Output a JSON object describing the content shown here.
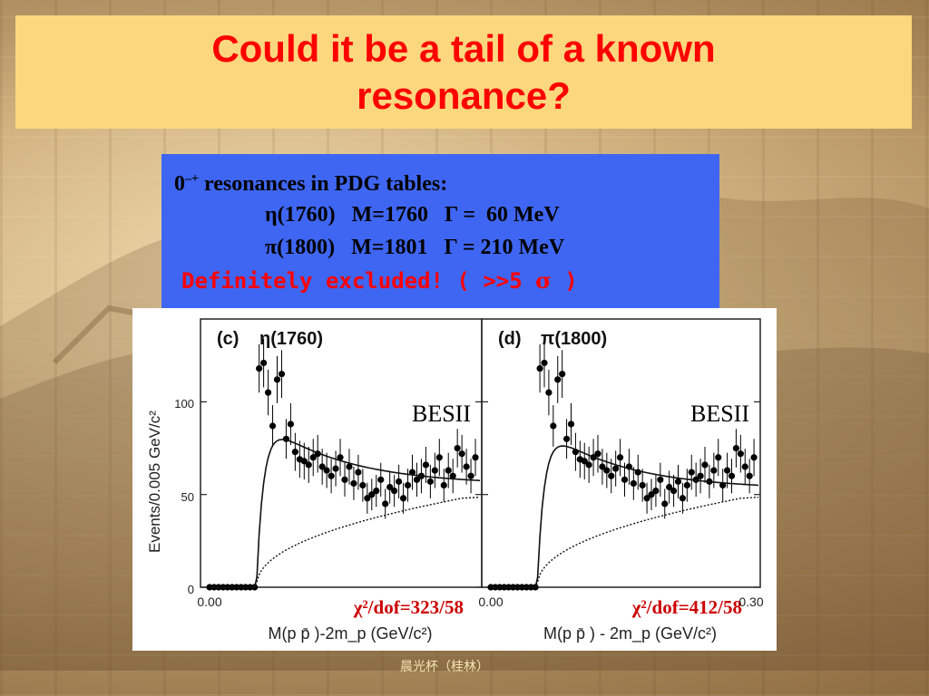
{
  "slide": {
    "title": "Could it be a tail of a known resonance?",
    "footer": "晨光杯（桂林）"
  },
  "info": {
    "heading_prefix": "0",
    "heading_sup": "–+",
    "heading_rest": " resonances in PDG tables:",
    "rows": [
      {
        "symbol": "η",
        "name": "(1760)",
        "mass": "M=1760",
        "gamma": "Γ =  60 MeV"
      },
      {
        "symbol": "π",
        "name": "(1800)",
        "mass": "M=1801",
        "gamma": "Γ = 210 MeV"
      }
    ],
    "excluded_text": "Definitely excluded! ( >>5 ",
    "excluded_sigma": "σ",
    "excluded_close": " )"
  },
  "plots": {
    "y_axis_label": "Events/0.005 GeV/c²",
    "y_ticks": [
      "0",
      "50",
      "100"
    ],
    "panels": [
      {
        "tag": "(c)",
        "label": "η(1760)",
        "experiment": "BESII",
        "chi2": "χ²/dof=323/58",
        "x_ticks": [
          "0.00"
        ],
        "x_label": "M(p p̄ )-2m_p (GeV/c²)"
      },
      {
        "tag": "(d)",
        "label": "π(1800)",
        "experiment": "BESII",
        "chi2": "χ²/dof=412/58",
        "x_ticks": [
          "0.00",
          "0.30"
        ],
        "x_label": "M(p p̄ ) - 2m_p (GeV/c²)"
      }
    ]
  },
  "colors": {
    "title_bg": "#fcd77e",
    "title_text": "#ff0000",
    "info_bg": "#3f66f2",
    "excluded_text": "#ff0000",
    "chi2_text": "#cc0000"
  },
  "chart_data": [
    {
      "type": "scatter",
      "title": "η(1760)",
      "xlabel": "M(p p̄ )-2m_p (GeV/c²)",
      "ylabel": "Events/0.005 GeV/c²",
      "xlim": [
        0,
        0.3
      ],
      "ylim": [
        0,
        130
      ],
      "x": [
        0.0,
        0.005,
        0.01,
        0.015,
        0.02,
        0.025,
        0.03,
        0.035,
        0.04,
        0.045,
        0.05,
        0.055,
        0.06,
        0.065,
        0.07,
        0.075,
        0.08,
        0.085,
        0.09,
        0.095,
        0.1,
        0.105,
        0.11,
        0.115,
        0.12,
        0.125,
        0.13,
        0.135,
        0.14,
        0.145,
        0.15,
        0.155,
        0.16,
        0.165,
        0.17,
        0.175,
        0.18,
        0.185,
        0.19,
        0.195,
        0.2,
        0.205,
        0.21,
        0.215,
        0.22,
        0.225,
        0.23,
        0.235,
        0.24,
        0.245,
        0.25,
        0.255,
        0.26,
        0.265,
        0.27,
        0.275,
        0.28,
        0.285,
        0.29,
        0.295
      ],
      "series": [
        {
          "values": [
            0,
            0,
            0,
            0,
            0,
            0,
            0,
            0,
            0,
            0,
            0,
            118,
            121,
            105,
            87,
            112,
            115,
            80,
            88,
            73,
            69,
            68,
            66,
            70,
            72,
            65,
            63,
            60,
            64,
            70,
            58,
            65,
            56,
            62,
            55,
            48,
            50,
            52,
            58,
            45,
            54,
            52,
            57,
            48,
            55,
            62,
            58,
            60,
            66,
            57,
            63,
            70,
            55,
            63,
            60,
            75,
            72,
            65,
            60,
            70
          ]
        }
      ]
    },
    {
      "type": "scatter",
      "title": "π(1800)",
      "xlabel": "M(p p̄ ) - 2m_p (GeV/c²)",
      "ylabel": "Events/0.005 GeV/c²",
      "xlim": [
        0,
        0.3
      ],
      "ylim": [
        0,
        130
      ],
      "x": [
        0.0,
        0.005,
        0.01,
        0.015,
        0.02,
        0.025,
        0.03,
        0.035,
        0.04,
        0.045,
        0.05,
        0.055,
        0.06,
        0.065,
        0.07,
        0.075,
        0.08,
        0.085,
        0.09,
        0.095,
        0.1,
        0.105,
        0.11,
        0.115,
        0.12,
        0.125,
        0.13,
        0.135,
        0.14,
        0.145,
        0.15,
        0.155,
        0.16,
        0.165,
        0.17,
        0.175,
        0.18,
        0.185,
        0.19,
        0.195,
        0.2,
        0.205,
        0.21,
        0.215,
        0.22,
        0.225,
        0.23,
        0.235,
        0.24,
        0.245,
        0.25,
        0.255,
        0.26,
        0.265,
        0.27,
        0.275,
        0.28,
        0.285,
        0.29,
        0.295
      ],
      "series": [
        {
          "values": [
            0,
            0,
            0,
            0,
            0,
            0,
            0,
            0,
            0,
            0,
            0,
            118,
            121,
            105,
            87,
            112,
            115,
            80,
            88,
            73,
            69,
            68,
            66,
            70,
            72,
            65,
            63,
            60,
            64,
            70,
            58,
            65,
            56,
            62,
            55,
            48,
            50,
            52,
            58,
            45,
            54,
            52,
            57,
            48,
            55,
            62,
            58,
            60,
            66,
            57,
            63,
            70,
            55,
            63,
            60,
            75,
            72,
            65,
            60,
            70
          ]
        }
      ]
    }
  ]
}
